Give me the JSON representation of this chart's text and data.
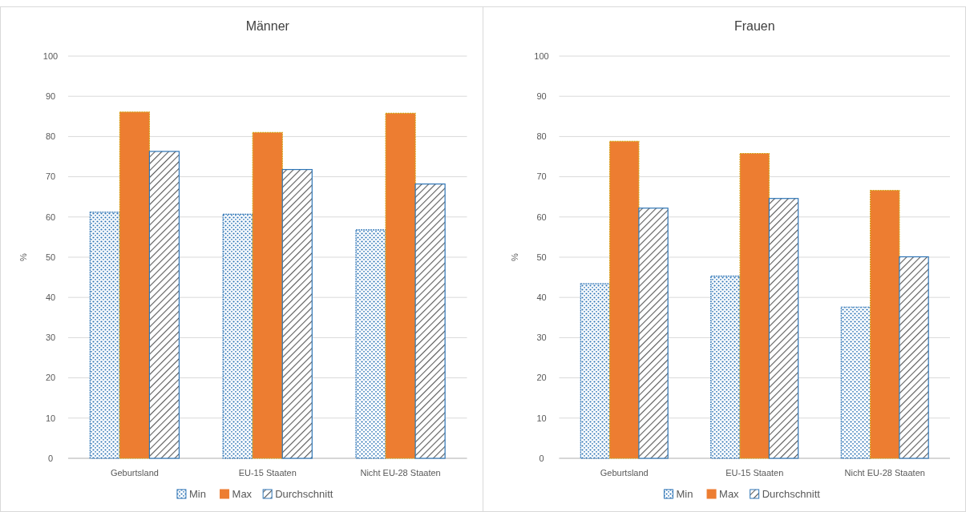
{
  "chart_data": [
    {
      "type": "bar",
      "title": "Männer",
      "ylabel": "%",
      "categories": [
        "Geburtsland",
        "EU-15 Staaten",
        "Nicht EU-28 Staaten"
      ],
      "ylim": [
        0,
        100
      ],
      "yticks": [
        0,
        10,
        20,
        30,
        40,
        50,
        60,
        70,
        80,
        90,
        100
      ],
      "grid": "y",
      "legend": "bottom",
      "series": [
        {
          "name": "Min",
          "color": "#2e75b6",
          "values": [
            61.2,
            60.7,
            56.8
          ]
        },
        {
          "name": "Max",
          "color": "#ed7d31",
          "values": [
            86.1,
            81.0,
            85.8
          ]
        },
        {
          "name": "Durchschnitt",
          "color": "#2e75b6",
          "values": [
            76.3,
            71.8,
            68.2
          ]
        }
      ]
    },
    {
      "type": "bar",
      "title": "Frauen",
      "ylabel": "%",
      "categories": [
        "Geburtsland",
        "EU-15 Staaten",
        "Nicht EU-28 Staaten"
      ],
      "ylim": [
        0,
        100
      ],
      "yticks": [
        0,
        10,
        20,
        30,
        40,
        50,
        60,
        70,
        80,
        90,
        100
      ],
      "grid": "y",
      "legend": "bottom",
      "series": [
        {
          "name": "Min",
          "color": "#2e75b6",
          "values": [
            43.4,
            45.3,
            37.6
          ]
        },
        {
          "name": "Max",
          "color": "#ed7d31",
          "values": [
            78.8,
            75.8,
            66.6
          ]
        },
        {
          "name": "Durchschnitt",
          "color": "#2e75b6",
          "values": [
            62.2,
            64.6,
            50.1
          ]
        }
      ]
    }
  ]
}
